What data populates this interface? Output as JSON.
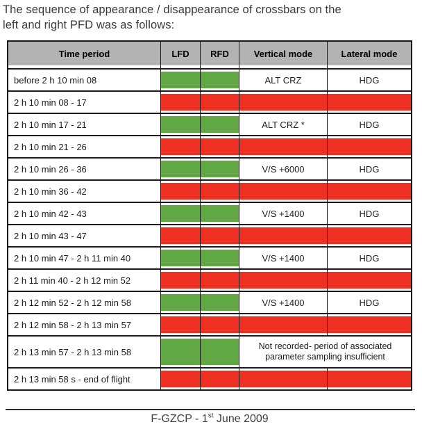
{
  "colors": {
    "green": "#61a845",
    "red": "#ee3023",
    "header_gray": "#b3b3b3",
    "border": "#1a1a1a",
    "text": "#1c1c1c",
    "title_text": "#3a3a3a",
    "footer_text": "#3d3d3d",
    "footer_line": "#2b2b2b"
  },
  "title": {
    "line1": "The sequence of appearance / disappearance of crossbars on the",
    "line2": "left and right PFD was as follows:"
  },
  "table": {
    "headers": {
      "time": "Time period",
      "lfd": "LFD",
      "rfd": "RFD",
      "vertical": "Vertical mode",
      "lateral": "Lateral mode"
    },
    "rows": [
      {
        "time": "before 2 h 10 min 08",
        "lfd": "green",
        "rfd": "green",
        "vertical": "ALT CRZ",
        "lateral": "HDG"
      },
      {
        "time": "2 h 10 min 08 - 17",
        "lfd": "red",
        "rfd": "red",
        "vertical": "",
        "lateral": ""
      },
      {
        "time": "2 h 10 min 17 - 21",
        "lfd": "green",
        "rfd": "green",
        "vertical": "ALT CRZ *",
        "lateral": "HDG"
      },
      {
        "time": "2 h 10 min 21 - 26",
        "lfd": "red",
        "rfd": "red",
        "vertical": "",
        "lateral": ""
      },
      {
        "time": "2 h 10 min 26 - 36",
        "lfd": "green",
        "rfd": "green",
        "vertical": "V/S +6000",
        "lateral": "HDG"
      },
      {
        "time": "2 h 10 min 36 - 42",
        "lfd": "red",
        "rfd": "red",
        "vertical": "",
        "lateral": ""
      },
      {
        "time": "2 h 10 min 42 - 43",
        "lfd": "green",
        "rfd": "green",
        "vertical": "V/S +1400",
        "lateral": "HDG"
      },
      {
        "time": "2 h 10 min 43 - 47",
        "lfd": "red",
        "rfd": "red",
        "vertical": "",
        "lateral": ""
      },
      {
        "time": "2 h 10 min 47 - 2 h 11 min 40",
        "lfd": "green",
        "rfd": "green",
        "vertical": "V/S +1400",
        "lateral": "HDG"
      },
      {
        "time": "2 h 11 min 40 - 2 h 12 min 52",
        "lfd": "red",
        "rfd": "red",
        "vertical": "",
        "lateral": ""
      },
      {
        "time": "2 h 12 min 52 - 2 h 12 min 58",
        "lfd": "green",
        "rfd": "green",
        "vertical": "V/S +1400",
        "lateral": "HDG"
      },
      {
        "time": "2 h 12 min 58 - 2 h 13 min 57",
        "lfd": "red",
        "rfd": "red",
        "vertical": "",
        "lateral": ""
      },
      {
        "time": "2 h 13 min 57 - 2 h 13 min 58",
        "lfd": "green",
        "rfd": "green",
        "note": "Not recorded- period of associated parameter sampling insufficient"
      },
      {
        "time": "2 h 13 min 58 s - end of flight",
        "lfd": "red",
        "rfd": "red",
        "vertical": "",
        "lateral": ""
      }
    ]
  },
  "footer": {
    "prefix": "F-GZCP - 1",
    "superscript": "st",
    "suffix": " June 2009"
  }
}
